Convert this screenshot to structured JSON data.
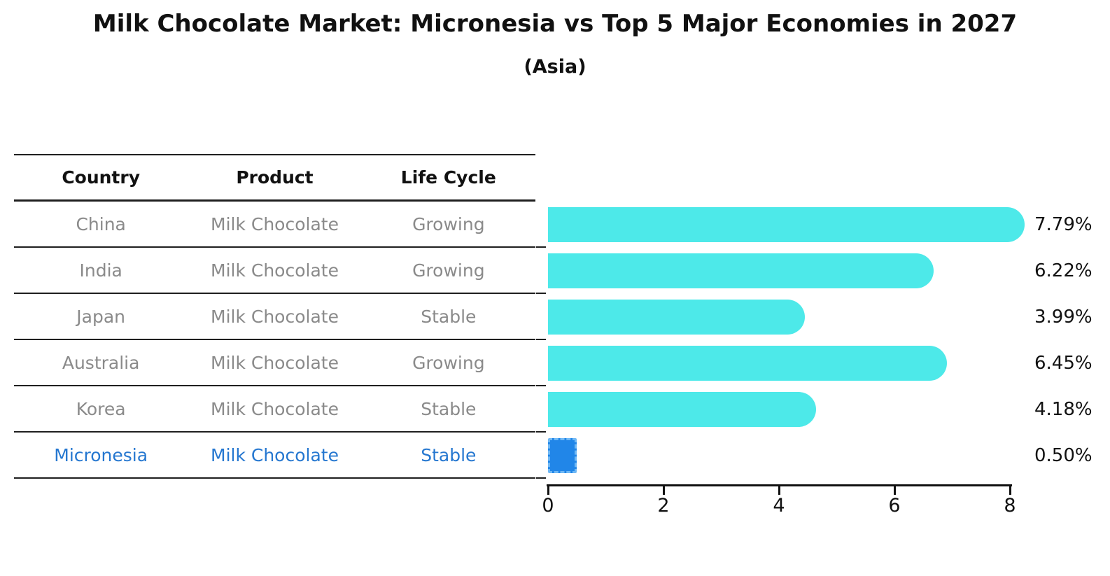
{
  "title": "Milk Chocolate Market: Micronesia vs Top 5 Major Economies in 2027",
  "subtitle": "(Asia)",
  "table": {
    "headers": [
      "Country",
      "Product",
      "Life Cycle"
    ],
    "rows": [
      {
        "country": "China",
        "product": "Milk Chocolate",
        "life_cycle": "Growing"
      },
      {
        "country": "India",
        "product": "Milk Chocolate",
        "life_cycle": "Growing"
      },
      {
        "country": "Japan",
        "product": "Milk Chocolate",
        "life_cycle": "Stable"
      },
      {
        "country": "Australia",
        "product": "Milk Chocolate",
        "life_cycle": "Growing"
      },
      {
        "country": "Korea",
        "product": "Milk Chocolate",
        "life_cycle": "Stable"
      },
      {
        "country": "Micronesia",
        "product": "Milk Chocolate",
        "life_cycle": "Stable"
      }
    ]
  },
  "chart_data": {
    "type": "bar",
    "orientation": "horizontal",
    "title": "Milk Chocolate Market: Micronesia vs Top 5 Major Economies in 2027",
    "subtitle": "(Asia)",
    "categories": [
      "China",
      "India",
      "Japan",
      "Australia",
      "Korea",
      "Micronesia"
    ],
    "values": [
      7.79,
      6.22,
      3.99,
      6.45,
      4.18,
      0.5
    ],
    "value_labels": [
      "7.79%",
      "6.22%",
      "3.99%",
      "6.45%",
      "4.18%",
      "0.50%"
    ],
    "x_ticks": [
      0,
      2,
      4,
      6,
      8
    ],
    "xlim": [
      0,
      8.3
    ],
    "grid": false,
    "legend": false,
    "highlight_index": 5,
    "bar_color": "#4de9e9",
    "highlight_bar_color": "#2186e8",
    "highlight_text_color": "#2577d0",
    "text_color": "#8a8a8a",
    "axis_color": "#111111"
  }
}
